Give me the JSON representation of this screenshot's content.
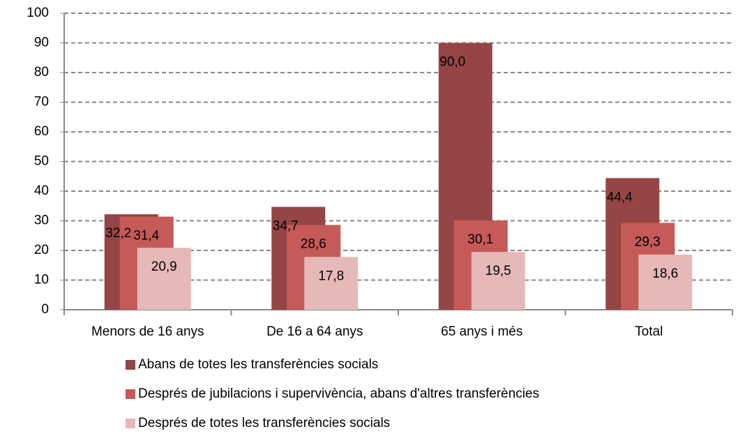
{
  "chart_data": {
    "type": "bar",
    "categories": [
      "Menors de 16 anys",
      "De 16 a 64 anys",
      "65 anys i més",
      "Total"
    ],
    "series": [
      {
        "name": "Abans de totes les transferències socials",
        "color": "#954545",
        "values": [
          32.2,
          34.7,
          90.0,
          44.4
        ],
        "value_labels": [
          "32,2",
          "34,7",
          "90,0",
          "44,4"
        ]
      },
      {
        "name": "Després de jubilacions i supervivència, abans d'altres transferències",
        "color": "#c55a58",
        "values": [
          31.4,
          28.6,
          30.1,
          29.3
        ],
        "value_labels": [
          "31,4",
          "28,6",
          "30,1",
          "29,3"
        ]
      },
      {
        "name": "Després de totes les transferències socials",
        "color": "#e6b9b8",
        "values": [
          20.9,
          17.8,
          19.5,
          18.6
        ],
        "value_labels": [
          "20,9",
          "17,8",
          "19,5",
          "18,6"
        ]
      }
    ],
    "ylim": [
      0,
      100
    ],
    "yticks": [
      0,
      10,
      20,
      30,
      40,
      50,
      60,
      70,
      80,
      90,
      100
    ],
    "grid": true,
    "legend": "bottom"
  }
}
